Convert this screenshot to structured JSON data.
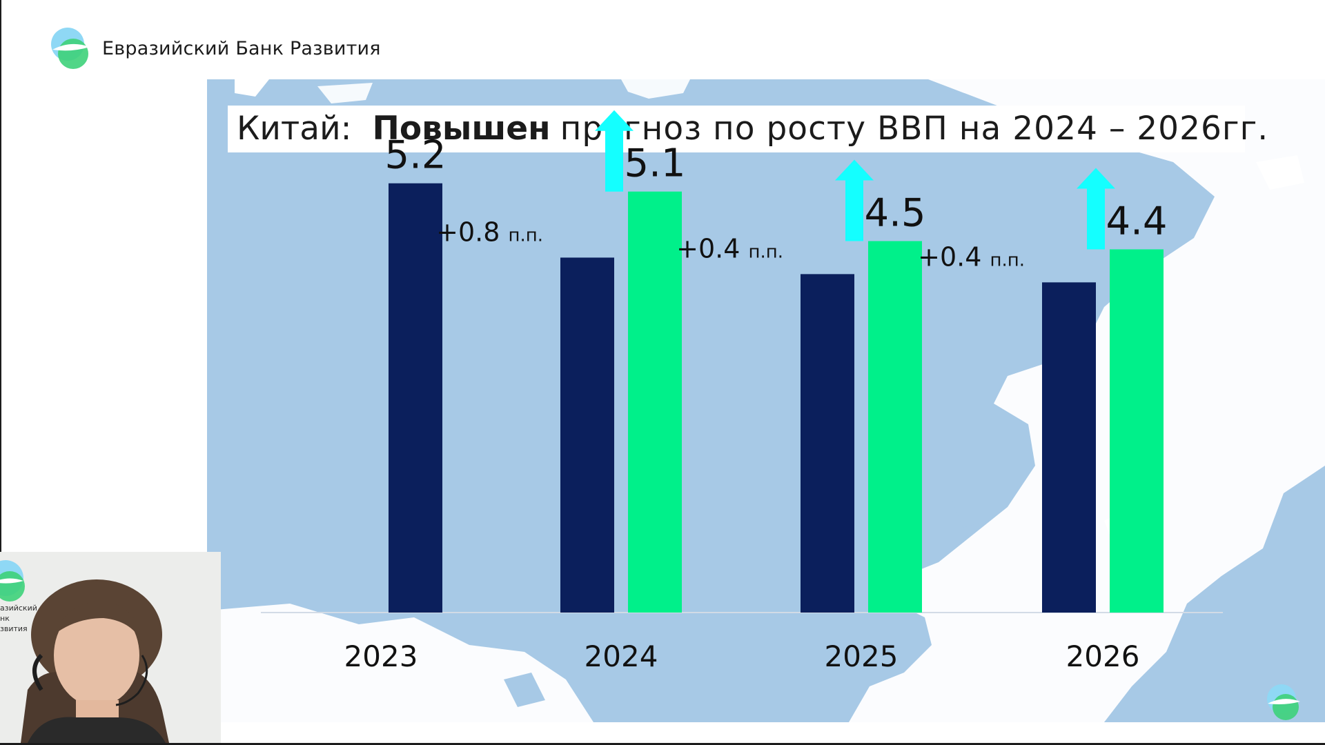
{
  "brand": {
    "name": "Евразийский Банк Развития"
  },
  "title": {
    "country": "Китай:",
    "bold": "Повышен",
    "rest": "прогноз по росту ВВП на 2024 – 2026гг."
  },
  "colors": {
    "previous": "#0b1f5c",
    "revised": "#00f08a",
    "arrow": "#14ffff",
    "map_water": "#a7c9e6",
    "map_land": "#ffffff"
  },
  "chart_data": {
    "type": "bar",
    "categories": [
      "2023",
      "2024",
      "2025",
      "2026"
    ],
    "series": [
      {
        "values": [
          5.2,
          4.3,
          4.1,
          4.0
        ],
        "labeled": [
          true,
          false,
          false,
          false
        ]
      },
      {
        "values": [
          null,
          5.1,
          4.5,
          4.4
        ],
        "labeled": [
          false,
          true,
          true,
          true
        ]
      }
    ],
    "annotations": [
      {
        "category": "2024",
        "value": "+0.8",
        "unit": "п.п.",
        "arrow": "up"
      },
      {
        "category": "2025",
        "value": "+0.4",
        "unit": "п.п.",
        "arrow": "up"
      },
      {
        "category": "2026",
        "value": "+0.4",
        "unit": "п.п.",
        "arrow": "up"
      }
    ],
    "ylim": [
      0,
      6
    ],
    "legend": "none",
    "grid": false
  },
  "webcam": {
    "badge_lines": [
      "азийский",
      "нк",
      "звития"
    ]
  }
}
